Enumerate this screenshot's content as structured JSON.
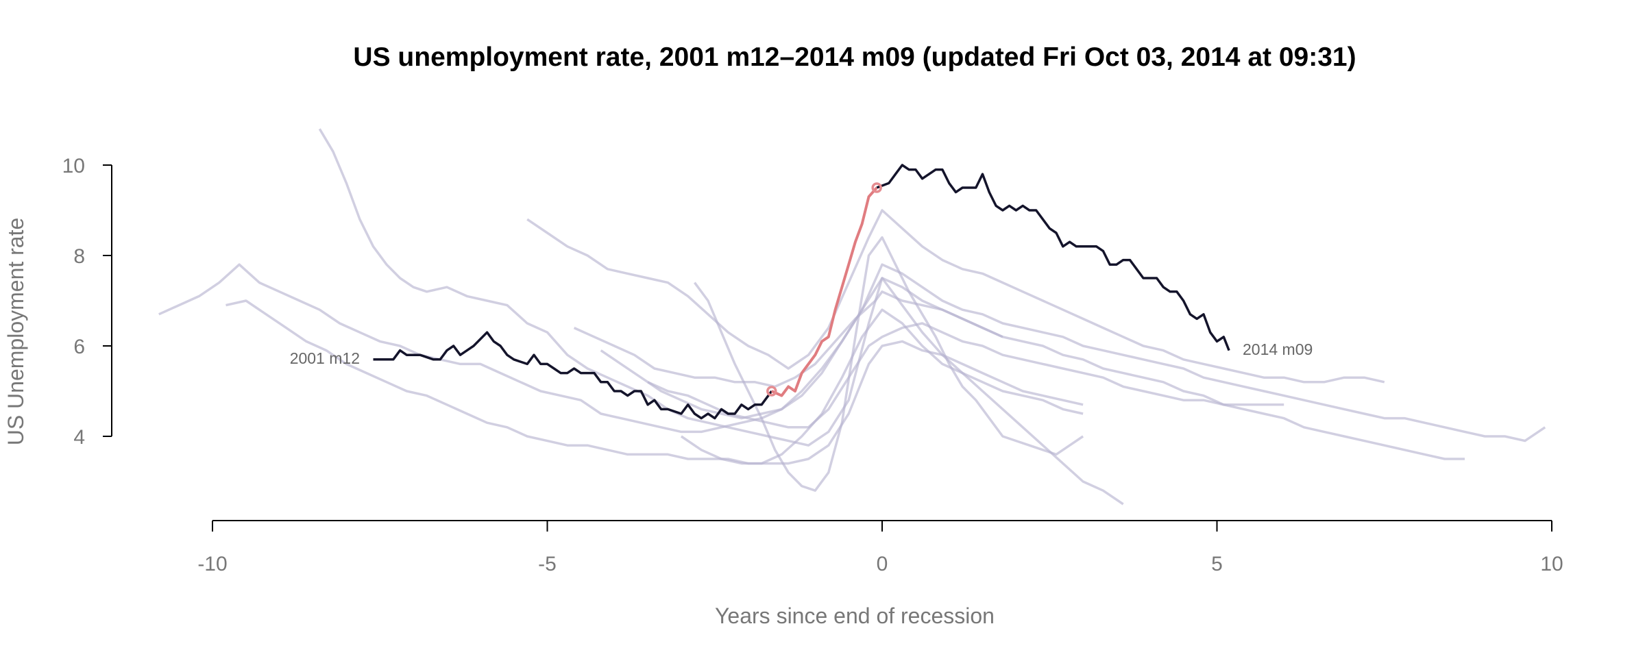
{
  "chart_data": {
    "type": "line",
    "title": "US unemployment rate, 2001 m12–2014 m09 (updated Fri Oct 03, 2014 at 09:31)",
    "xlabel": "Years since end of recession",
    "ylabel": "US Unemployment rate",
    "xlim": [
      -10.8,
      10.4
    ],
    "ylim": [
      2.5,
      10.8
    ],
    "x_ticks": [
      -10,
      -5,
      0,
      5,
      10
    ],
    "x_tick_labels": [
      "-10",
      "-5",
      "0",
      "5",
      "10"
    ],
    "y_ticks": [
      4,
      6,
      8,
      10
    ],
    "y_tick_labels": [
      "4",
      "6",
      "8",
      "10"
    ],
    "grid": false,
    "start_label": "2001 m12",
    "end_label": "2014 m09",
    "colors": {
      "main": "#14142b",
      "recession": "#e07c80",
      "background": "#b4b1cf"
    },
    "main_series": {
      "x": [
        -7.6,
        -7.3,
        -7.2,
        -7.1,
        -6.9,
        -6.7,
        -6.6,
        -6.5,
        -6.4,
        -6.3,
        -6.2,
        -6.1,
        -5.9,
        -5.8,
        -5.7,
        -5.6,
        -5.5,
        -5.3,
        -5.2,
        -5.1,
        -5.0,
        -4.9,
        -4.8,
        -4.7,
        -4.6,
        -4.5,
        -4.3,
        -4.2,
        -4.1,
        -4.0,
        -3.9,
        -3.8,
        -3.7,
        -3.6,
        -3.5,
        -3.4,
        -3.3,
        -3.2,
        -3.0,
        -2.9,
        -2.8,
        -2.7,
        -2.6,
        -2.5,
        -2.4,
        -2.3,
        -2.2,
        -2.1,
        -2.0,
        -1.9,
        -1.8,
        -1.65
      ],
      "y": [
        5.7,
        5.7,
        5.9,
        5.8,
        5.8,
        5.7,
        5.7,
        5.9,
        6.0,
        5.8,
        5.9,
        6.0,
        6.3,
        6.1,
        6.0,
        5.8,
        5.7,
        5.6,
        5.8,
        5.6,
        5.6,
        5.5,
        5.4,
        5.4,
        5.5,
        5.4,
        5.4,
        5.2,
        5.2,
        5.0,
        5.0,
        4.9,
        5.0,
        5.0,
        4.7,
        4.8,
        4.6,
        4.6,
        4.5,
        4.7,
        4.5,
        4.4,
        4.5,
        4.4,
        4.6,
        4.5,
        4.5,
        4.7,
        4.6,
        4.7,
        4.7,
        5.0
      ]
    },
    "recession_series": {
      "x": [
        -1.65,
        -1.5,
        -1.4,
        -1.3,
        -1.2,
        -1.1,
        -1.0,
        -0.9,
        -0.8,
        -0.7,
        -0.6,
        -0.5,
        -0.4,
        -0.3,
        -0.2,
        -0.08
      ],
      "y": [
        5.0,
        4.9,
        5.1,
        5.0,
        5.4,
        5.6,
        5.8,
        6.1,
        6.2,
        6.8,
        7.3,
        7.8,
        8.3,
        8.7,
        9.3,
        9.5
      ]
    },
    "post_recession_series": {
      "x": [
        -0.08,
        0.1,
        0.2,
        0.3,
        0.4,
        0.5,
        0.6,
        0.7,
        0.8,
        0.9,
        1.0,
        1.1,
        1.2,
        1.3,
        1.4,
        1.5,
        1.6,
        1.7,
        1.8,
        1.9,
        2.0,
        2.1,
        2.2,
        2.3,
        2.4,
        2.5,
        2.6,
        2.7,
        2.8,
        2.9,
        3.0,
        3.1,
        3.2,
        3.3,
        3.4,
        3.5,
        3.6,
        3.7,
        3.8,
        3.9,
        4.0,
        4.1,
        4.2,
        4.3,
        4.4,
        4.5,
        4.6,
        4.7,
        4.8,
        4.9,
        5.0,
        5.1,
        5.18
      ],
      "y": [
        9.5,
        9.6,
        9.8,
        10.0,
        9.9,
        9.9,
        9.7,
        9.8,
        9.9,
        9.9,
        9.6,
        9.4,
        9.5,
        9.5,
        9.5,
        9.8,
        9.4,
        9.1,
        9.0,
        9.1,
        9.0,
        9.1,
        9.0,
        9.0,
        8.8,
        8.6,
        8.5,
        8.2,
        8.3,
        8.2,
        8.2,
        8.2,
        8.2,
        8.1,
        7.8,
        7.8,
        7.9,
        7.9,
        7.7,
        7.5,
        7.5,
        7.5,
        7.3,
        7.2,
        7.2,
        7.0,
        6.7,
        6.6,
        6.7,
        6.3,
        6.1,
        6.2,
        5.9
      ]
    },
    "recession_markers": [
      {
        "x": -1.65,
        "y": 5.0
      },
      {
        "x": -0.08,
        "y": 9.5
      }
    ],
    "background_series": [
      {
        "x": [
          -10.8,
          -10.5,
          -10.2,
          -9.9,
          -9.6,
          -9.3,
          -9.0,
          -8.7,
          -8.4,
          -8.1,
          -7.8,
          -7.5,
          -7.2,
          -6.9,
          -6.6,
          -6.3,
          -6.0,
          -5.7,
          -5.4,
          -5.1,
          -4.8,
          -4.5,
          -4.2,
          -3.9,
          -3.6,
          -3.3,
          -3.0,
          -2.7,
          -2.4,
          -2.1,
          -1.8,
          -1.5,
          -1.2,
          -0.9,
          -0.6,
          -0.3,
          0.0,
          0.3,
          0.6,
          0.9,
          1.2,
          1.5,
          1.8
        ],
        "y": [
          6.7,
          6.9,
          7.1,
          7.4,
          7.8,
          7.4,
          7.2,
          7.0,
          6.8,
          6.5,
          6.3,
          6.1,
          6.0,
          5.8,
          5.7,
          5.6,
          5.6,
          5.4,
          5.2,
          5.0,
          4.9,
          4.8,
          4.5,
          4.4,
          4.3,
          4.2,
          4.1,
          4.1,
          4.2,
          4.3,
          4.4,
          4.6,
          5.0,
          5.5,
          6.1,
          6.8,
          7.5,
          7.3,
          7.0,
          6.8,
          6.6,
          6.4,
          6.2
        ]
      },
      {
        "x": [
          -8.4,
          -8.2,
          -8.0,
          -7.8,
          -7.6,
          -7.4,
          -7.2,
          -7.0,
          -6.8,
          -6.5,
          -6.2,
          -5.9,
          -5.6,
          -5.3,
          -5.0,
          -4.7,
          -4.4,
          -4.1,
          -3.8,
          -3.5,
          -3.2,
          -2.9,
          -2.6,
          -2.3,
          -2.0,
          -1.7,
          -1.4,
          -1.1,
          -0.8,
          -0.5,
          -0.2,
          0.0,
          0.3,
          0.6,
          0.9,
          1.2,
          1.5,
          1.8,
          2.1,
          2.4,
          2.7,
          3.0,
          3.3,
          3.6
        ],
        "y": [
          10.8,
          10.3,
          9.6,
          8.8,
          8.2,
          7.8,
          7.5,
          7.3,
          7.2,
          7.3,
          7.1,
          7.0,
          6.9,
          6.5,
          6.3,
          5.8,
          5.5,
          5.3,
          5.1,
          4.9,
          4.6,
          4.4,
          4.3,
          4.2,
          4.1,
          4.0,
          3.9,
          3.8,
          4.1,
          4.8,
          6.5,
          7.5,
          6.9,
          6.3,
          5.8,
          5.4,
          5.0,
          4.6,
          4.2,
          3.8,
          3.4,
          3.0,
          2.8,
          2.5
        ]
      },
      {
        "x": [
          -5.3,
          -5.0,
          -4.7,
          -4.4,
          -4.1,
          -3.8,
          -3.5,
          -3.2,
          -2.9,
          -2.6,
          -2.3,
          -2.0,
          -1.7,
          -1.4,
          -1.1,
          -0.8,
          -0.5,
          -0.2,
          0.0,
          0.3,
          0.6,
          0.9,
          1.2,
          1.5,
          1.8,
          2.1,
          2.4,
          2.7,
          3.0,
          3.3,
          3.6,
          3.9,
          4.2,
          4.5,
          4.8,
          5.1,
          5.4,
          5.7,
          6.0,
          6.3,
          6.6,
          6.9,
          7.2,
          7.5
        ],
        "y": [
          8.8,
          8.5,
          8.2,
          8.0,
          7.7,
          7.6,
          7.5,
          7.4,
          7.1,
          6.7,
          6.3,
          6.0,
          5.8,
          5.5,
          5.8,
          6.4,
          7.4,
          8.4,
          9.0,
          8.6,
          8.2,
          7.9,
          7.7,
          7.6,
          7.4,
          7.2,
          7.0,
          6.8,
          6.6,
          6.4,
          6.2,
          6.0,
          5.9,
          5.7,
          5.6,
          5.5,
          5.4,
          5.3,
          5.3,
          5.2,
          5.2,
          5.3,
          5.3,
          5.2
        ]
      },
      {
        "x": [
          -2.8,
          -2.6,
          -2.4,
          -2.2,
          -2.0,
          -1.8,
          -1.6,
          -1.4,
          -1.2,
          -1.0,
          -0.8,
          -0.6,
          -0.4,
          -0.2,
          0.0,
          0.2,
          0.4,
          0.6,
          0.8,
          1.0,
          1.2,
          1.4,
          1.6,
          1.8,
          2.0,
          2.2,
          2.4,
          2.6,
          2.8,
          3.0
        ],
        "y": [
          7.4,
          7.0,
          6.3,
          5.6,
          5.0,
          4.4,
          3.7,
          3.2,
          2.9,
          2.8,
          3.2,
          4.3,
          6.2,
          8.0,
          8.4,
          7.8,
          7.2,
          6.7,
          6.2,
          5.6,
          5.1,
          4.8,
          4.4,
          4.0,
          3.9,
          3.8,
          3.7,
          3.6,
          3.8,
          4.0
        ]
      },
      {
        "x": [
          -4.6,
          -4.3,
          -4.0,
          -3.7,
          -3.4,
          -3.1,
          -2.8,
          -2.5,
          -2.2,
          -1.9,
          -1.6,
          -1.3,
          -1.0,
          -0.7,
          -0.4,
          -0.1,
          0.0,
          0.3,
          0.6,
          0.9,
          1.2,
          1.5,
          1.8,
          2.1,
          2.4,
          2.7,
          3.0,
          3.3,
          3.6,
          3.9,
          4.2,
          4.5,
          4.8,
          5.1,
          5.4,
          5.7,
          6.0,
          6.3,
          6.6,
          6.9,
          7.2,
          7.5,
          7.8,
          8.1,
          8.4,
          8.7
        ],
        "y": [
          6.4,
          6.2,
          6.0,
          5.8,
          5.5,
          5.4,
          5.3,
          5.3,
          5.2,
          5.2,
          5.1,
          5.3,
          5.6,
          6.1,
          6.6,
          7.0,
          7.2,
          7.0,
          6.9,
          6.8,
          6.6,
          6.4,
          6.2,
          6.1,
          6.0,
          5.8,
          5.7,
          5.5,
          5.4,
          5.3,
          5.2,
          5.0,
          4.9,
          4.7,
          4.6,
          4.5,
          4.4,
          4.2,
          4.1,
          4.0,
          3.9,
          3.8,
          3.7,
          3.6,
          3.5,
          3.5
        ]
      },
      {
        "x": [
          -9.8,
          -9.5,
          -9.2,
          -8.9,
          -8.6,
          -8.3,
          -8.0,
          -7.7,
          -7.4,
          -7.1,
          -6.8,
          -6.5,
          -6.2,
          -5.9,
          -5.6,
          -5.3,
          -5.0,
          -4.7,
          -4.4,
          -4.1,
          -3.8,
          -3.5,
          -3.2,
          -2.9,
          -2.6,
          -2.3,
          -2.0,
          -1.7,
          -1.4,
          -1.1,
          -0.8,
          -0.5,
          -0.2,
          0.0,
          0.3,
          0.6,
          0.9,
          1.2,
          1.5,
          1.8,
          2.1,
          2.4,
          2.7,
          3.0
        ],
        "y": [
          6.9,
          7.0,
          6.7,
          6.4,
          6.1,
          5.9,
          5.6,
          5.4,
          5.2,
          5.0,
          4.9,
          4.7,
          4.5,
          4.3,
          4.2,
          4.0,
          3.9,
          3.8,
          3.8,
          3.7,
          3.6,
          3.6,
          3.6,
          3.5,
          3.5,
          3.5,
          3.4,
          3.4,
          3.4,
          3.5,
          3.8,
          4.5,
          5.6,
          6.0,
          6.1,
          5.9,
          5.8,
          5.6,
          5.4,
          5.2,
          5.0,
          4.9,
          4.8,
          4.7
        ]
      },
      {
        "x": [
          -4.2,
          -3.9,
          -3.6,
          -3.3,
          -3.0,
          -2.7,
          -2.4,
          -2.1,
          -1.8,
          -1.5,
          -1.2,
          -0.9,
          -0.6,
          -0.3,
          0.0,
          0.3,
          0.6,
          0.9,
          1.2,
          1.5,
          1.8,
          2.1,
          2.4,
          2.7,
          3.0,
          3.3,
          3.6,
          3.9,
          4.2,
          4.5,
          4.8,
          5.1,
          5.4,
          5.7,
          6.0,
          6.3,
          6.6,
          6.9,
          7.2,
          7.5,
          7.8,
          8.1,
          8.4,
          8.7,
          9.0,
          9.3,
          9.6,
          9.9
        ],
        "y": [
          5.9,
          5.6,
          5.3,
          5.0,
          4.8,
          4.6,
          4.5,
          4.4,
          4.5,
          4.6,
          4.9,
          5.4,
          6.1,
          6.8,
          7.8,
          7.6,
          7.3,
          7.0,
          6.8,
          6.7,
          6.5,
          6.4,
          6.3,
          6.2,
          6.0,
          5.9,
          5.8,
          5.7,
          5.6,
          5.5,
          5.3,
          5.2,
          5.1,
          5.0,
          4.9,
          4.8,
          4.7,
          4.6,
          4.5,
          4.4,
          4.4,
          4.3,
          4.2,
          4.1,
          4.0,
          4.0,
          3.9,
          4.2
        ]
      },
      {
        "x": [
          -3.5,
          -3.2,
          -2.9,
          -2.6,
          -2.3,
          -2.0,
          -1.7,
          -1.4,
          -1.1,
          -0.8,
          -0.5,
          -0.2,
          0.0,
          0.3,
          0.6,
          0.9,
          1.2,
          1.5,
          1.8,
          2.1,
          2.4,
          2.7,
          3.0,
          3.3,
          3.6,
          3.9,
          4.2,
          4.5,
          4.8,
          5.1,
          5.4,
          5.7,
          6.0
        ],
        "y": [
          5.2,
          5.0,
          4.9,
          4.7,
          4.5,
          4.4,
          4.3,
          4.2,
          4.2,
          4.6,
          5.3,
          6.0,
          6.2,
          6.4,
          6.5,
          6.3,
          6.1,
          6.0,
          5.8,
          5.7,
          5.6,
          5.5,
          5.4,
          5.3,
          5.1,
          5.0,
          4.9,
          4.8,
          4.8,
          4.7,
          4.7,
          4.7,
          4.7
        ]
      },
      {
        "x": [
          -3.0,
          -2.7,
          -2.4,
          -2.1,
          -1.8,
          -1.5,
          -1.2,
          -0.9,
          -0.6,
          -0.3,
          0.0,
          0.3,
          0.6,
          0.9,
          1.2,
          1.5,
          1.8,
          2.1,
          2.4,
          2.7,
          3.0
        ],
        "y": [
          4.0,
          3.7,
          3.5,
          3.4,
          3.4,
          3.6,
          4.0,
          4.5,
          5.3,
          6.2,
          6.8,
          6.5,
          6.0,
          5.6,
          5.4,
          5.2,
          5.0,
          4.9,
          4.8,
          4.6,
          4.5
        ]
      }
    ]
  }
}
